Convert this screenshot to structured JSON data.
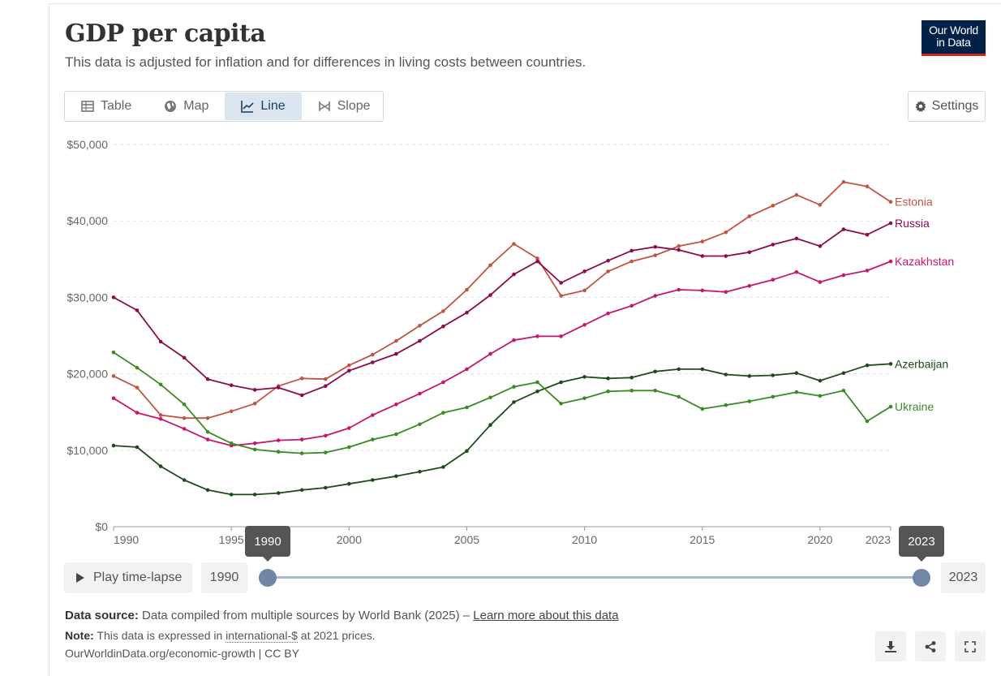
{
  "header": {
    "title": "GDP per capita",
    "subtitle": "This data is adjusted for inflation and for differences in living costs between countries.",
    "logo_line1": "Our World",
    "logo_line2": "in Data"
  },
  "tabs": [
    {
      "label": "Table",
      "icon": "table-icon"
    },
    {
      "label": "Map",
      "icon": "globe-icon"
    },
    {
      "label": "Line",
      "icon": "line-chart-icon",
      "active": true
    },
    {
      "label": "Slope",
      "icon": "slope-icon"
    }
  ],
  "settings_label": "Settings",
  "chart_data": {
    "type": "line",
    "title": "GDP per capita",
    "ylim": [
      0,
      50000
    ],
    "xlim": [
      1990,
      2023
    ],
    "yticks": [
      0,
      10000,
      20000,
      30000,
      40000,
      50000
    ],
    "ytick_labels": [
      "$0",
      "$10,000",
      "$20,000",
      "$30,000",
      "$40,000",
      "$50,000"
    ],
    "xticks": [
      1990,
      1995,
      2000,
      2005,
      2010,
      2015,
      2020,
      2023
    ],
    "xtick_labels": [
      "1990",
      "1995",
      "2000",
      "2005",
      "2010",
      "2015",
      "2020",
      "2023"
    ],
    "legend": "right-end labels",
    "x": [
      1990,
      1991,
      1992,
      1993,
      1994,
      1995,
      1996,
      1997,
      1998,
      1999,
      2000,
      2001,
      2002,
      2003,
      2004,
      2005,
      2006,
      2007,
      2008,
      2009,
      2010,
      2011,
      2012,
      2013,
      2014,
      2015,
      2016,
      2017,
      2018,
      2019,
      2020,
      2021,
      2022,
      2023
    ],
    "series": [
      {
        "name": "Estonia",
        "color": "#c15544",
        "values": [
          19700,
          18200,
          14600,
          14200,
          14200,
          15100,
          16100,
          18400,
          19400,
          19300,
          21100,
          22500,
          24300,
          26300,
          28200,
          31000,
          34200,
          37000,
          35100,
          30200,
          30900,
          33400,
          34700,
          35500,
          36700,
          37300,
          38500,
          40600,
          42000,
          43400,
          42100,
          45100,
          44500,
          42500
        ]
      },
      {
        "name": "Russia",
        "color": "#8b0d4e",
        "values": [
          30000,
          28300,
          24200,
          22100,
          19300,
          18500,
          17900,
          18200,
          17200,
          18400,
          20400,
          21500,
          22600,
          24300,
          26200,
          28000,
          30300,
          33000,
          34700,
          31900,
          33400,
          34800,
          36100,
          36600,
          36200,
          35400,
          35400,
          35900,
          36900,
          37700,
          36700,
          38900,
          38200,
          39700
        ]
      },
      {
        "name": "Kazakhstan",
        "color": "#c7166f",
        "values": [
          16800,
          14900,
          14100,
          12800,
          11400,
          10600,
          10900,
          11300,
          11400,
          11900,
          12900,
          14600,
          16000,
          17400,
          18900,
          20600,
          22600,
          24400,
          24900,
          24900,
          26400,
          27900,
          28900,
          30200,
          31000,
          30900,
          30700,
          31500,
          32300,
          33300,
          32000,
          32900,
          33500,
          34700
        ]
      },
      {
        "name": "Azerbaijan",
        "color": "#1d4b1b",
        "values": [
          10600,
          10400,
          7900,
          6100,
          4800,
          4200,
          4200,
          4400,
          4800,
          5100,
          5600,
          6100,
          6600,
          7200,
          7800,
          9900,
          13300,
          16300,
          17700,
          18900,
          19600,
          19400,
          19500,
          20300,
          20600,
          20600,
          19900,
          19700,
          19800,
          20100,
          19100,
          20100,
          21100,
          21300
        ]
      },
      {
        "name": "Ukraine",
        "color": "#3a8b24",
        "values": [
          22800,
          20800,
          18600,
          16000,
          12400,
          10900,
          10100,
          9800,
          9600,
          9700,
          10400,
          11400,
          12100,
          13400,
          14900,
          15600,
          16900,
          18300,
          18900,
          16100,
          16800,
          17700,
          17800,
          17800,
          17000,
          15400,
          15900,
          16400,
          17000,
          17600,
          17100,
          17800,
          13800,
          15700
        ]
      }
    ]
  },
  "timeline": {
    "play_label": "Play time-lapse",
    "start_year": "1990",
    "end_year": "2023",
    "start_tooltip": "1990",
    "end_tooltip": "2023",
    "range_start_fraction": 0,
    "range_end_fraction": 1
  },
  "footer": {
    "source_label": "Data source:",
    "source_text": "Data compiled from multiple sources by World Bank (2025) –",
    "learn_more": "Learn more about this data",
    "note_label": "Note:",
    "note_text1": "This data is expressed in",
    "note_link": "international-$",
    "note_text2": "at 2021 prices.",
    "credit": "OurWorldinData.org/economic-growth | CC BY"
  }
}
